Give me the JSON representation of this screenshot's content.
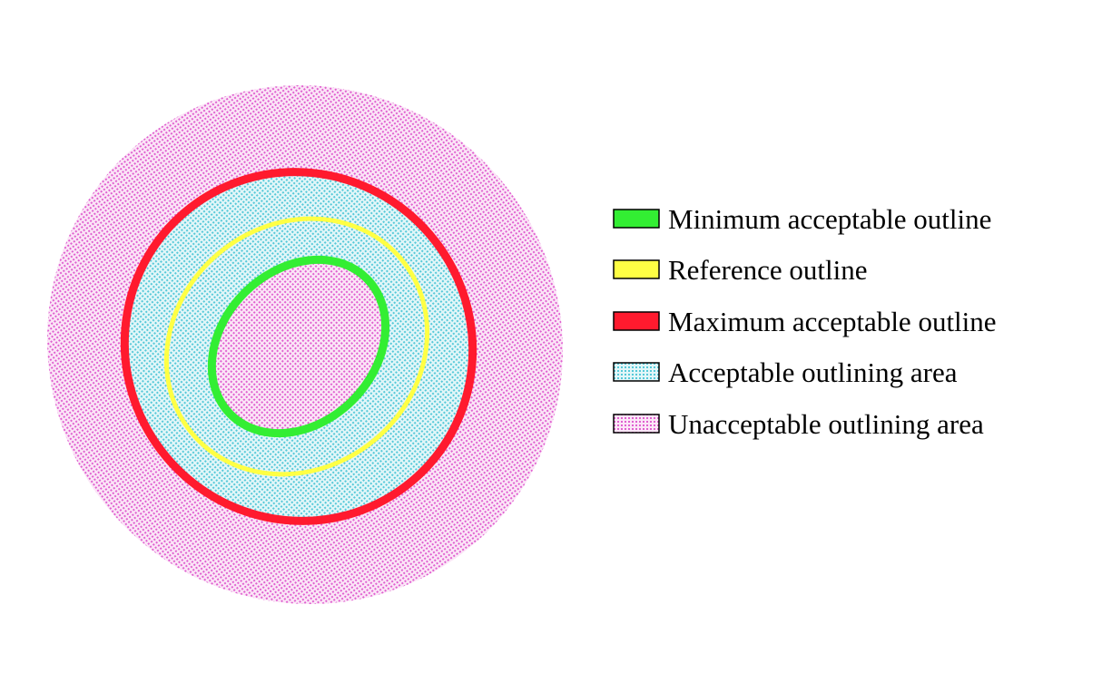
{
  "colors": {
    "minimum_outline": "#33ee33",
    "reference_outline": "#ffff44",
    "maximum_outline": "#ff1a2e",
    "acceptable_area_dots": "#55c8d8",
    "acceptable_area_bg": "#e2f6f8",
    "unacceptable_area_dots": "#e060d0",
    "unacceptable_area_bg": "#fbe6f7"
  },
  "legend": {
    "items": [
      {
        "label": "Minimum acceptable outline",
        "icon": "green-solid-swatch"
      },
      {
        "label": "Reference outline",
        "icon": "yellow-solid-swatch"
      },
      {
        "label": "Maximum acceptable outline",
        "icon": "red-solid-swatch"
      },
      {
        "label": "Acceptable outlining area",
        "icon": "cyan-dotted-swatch"
      },
      {
        "label": "Unacceptable outlining area",
        "icon": "magenta-dotted-swatch"
      }
    ]
  }
}
